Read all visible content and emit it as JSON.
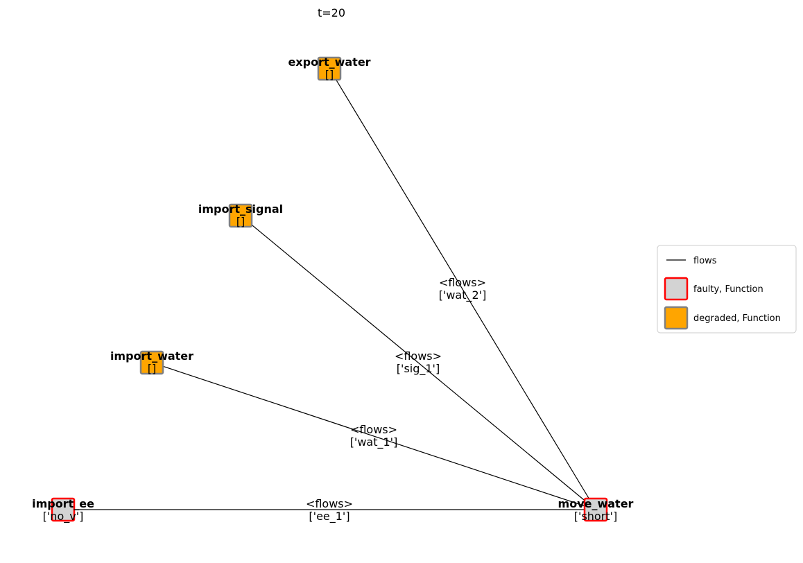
{
  "title": "t=20",
  "nodes": {
    "export_water": {
      "label": "export_water",
      "faults": "[]",
      "status": "degraded"
    },
    "import_signal": {
      "label": "import_signal",
      "faults": "[]",
      "status": "degraded"
    },
    "import_water": {
      "label": "import_water",
      "faults": "[]",
      "status": "degraded"
    },
    "import_ee": {
      "label": "import_ee",
      "faults": "['no_v']",
      "status": "faulty"
    },
    "move_water": {
      "label": "move_water",
      "faults": "['short']",
      "status": "faulty"
    }
  },
  "edges": [
    {
      "id": "ee",
      "from": "import_ee",
      "to": "move_water",
      "type": "<flows>",
      "flows": "['ee_1']"
    },
    {
      "id": "wat1",
      "from": "import_water",
      "to": "move_water",
      "type": "<flows>",
      "flows": "['wat_1']"
    },
    {
      "id": "sig",
      "from": "import_signal",
      "to": "move_water",
      "type": "<flows>",
      "flows": "['sig_1']"
    },
    {
      "id": "wat2",
      "from": "export_water",
      "to": "move_water",
      "type": "<flows>",
      "flows": "['wat_2']"
    }
  ],
  "legend": {
    "flows": "flows",
    "faulty": "faulty, Function",
    "degraded": "degraded, Function"
  },
  "colors": {
    "faulty_fill": "#d3d3d3",
    "faulty_edge": "#ff0000",
    "degraded_fill": "#ffa500",
    "degraded_edge": "#808080",
    "edge": "#000000"
  }
}
